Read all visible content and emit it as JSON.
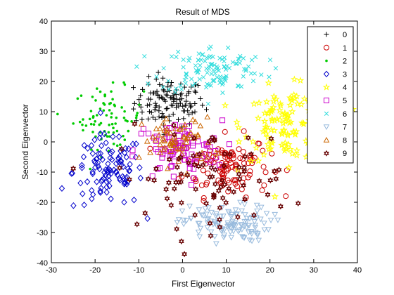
{
  "chart_data": {
    "type": "scatter",
    "title": "Result of MDS",
    "xlabel": "First Eigenvector",
    "ylabel": "Second Eigenvector",
    "xlim": [
      -30,
      40
    ],
    "ylim": [
      -40,
      40
    ],
    "xticks": [
      -30,
      -20,
      -10,
      0,
      10,
      20,
      30,
      40
    ],
    "yticks": [
      -40,
      -30,
      -20,
      -10,
      0,
      10,
      20,
      30,
      40
    ],
    "grid": false,
    "legend_position": "top-right",
    "series": [
      {
        "name": "0",
        "marker": "plus",
        "color": "#000000",
        "cx": -3,
        "cy": 13,
        "sx": 4,
        "sy": 4,
        "n": 120
      },
      {
        "name": "1",
        "marker": "circle",
        "color": "#cc0000",
        "cx": 10,
        "cy": -8,
        "sx": 5,
        "sy": 5,
        "n": 110
      },
      {
        "name": "2",
        "marker": "dot",
        "color": "#00cc00",
        "cx": -17,
        "cy": 8,
        "sx": 4,
        "sy": 5,
        "n": 80
      },
      {
        "name": "3",
        "marker": "diamond",
        "color": "#0000cc",
        "cx": -17,
        "cy": -10,
        "sx": 4,
        "sy": 6,
        "n": 110
      },
      {
        "name": "4",
        "marker": "star",
        "color": "#ffff00",
        "cx": 24,
        "cy": 6,
        "sx": 5,
        "sy": 6,
        "n": 120
      },
      {
        "name": "5",
        "marker": "square",
        "color": "#cc00cc",
        "cx": -1,
        "cy": -3,
        "sx": 5,
        "sy": 5,
        "n": 90
      },
      {
        "name": "6",
        "marker": "x",
        "color": "#33dddd",
        "cx": 7,
        "cy": 24,
        "sx": 6,
        "sy": 4,
        "n": 120
      },
      {
        "name": "7",
        "marker": "triangle-down",
        "color": "#99bbdd",
        "cx": 10,
        "cy": -27,
        "sx": 5,
        "sy": 3,
        "n": 120
      },
      {
        "name": "8",
        "marker": "triangle-up",
        "color": "#cc6600",
        "cx": -1,
        "cy": 0,
        "sx": 4,
        "sy": 4,
        "n": 70
      },
      {
        "name": "9",
        "marker": "hexagram",
        "color": "#660000",
        "cx": 5,
        "cy": -12,
        "sx": 10,
        "sy": 8,
        "n": 90
      }
    ]
  }
}
